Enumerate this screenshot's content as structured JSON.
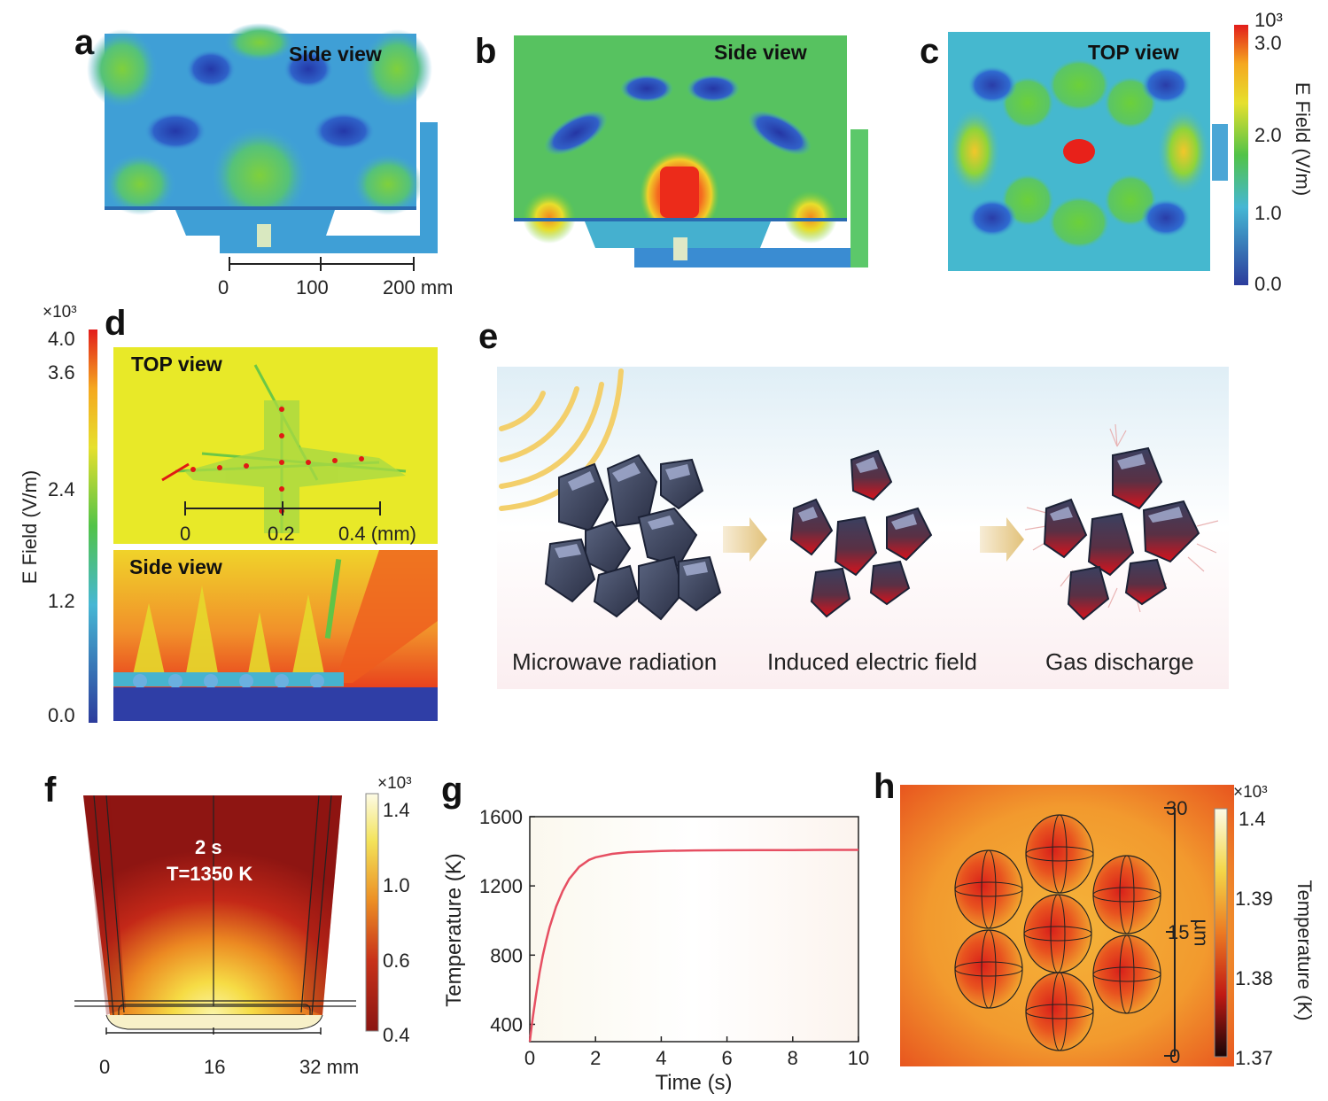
{
  "panels": {
    "a": {
      "label": "a",
      "view": "Side view"
    },
    "b": {
      "label": "b",
      "view": "Side view"
    },
    "c": {
      "label": "c",
      "view": "TOP view"
    },
    "d": {
      "label": "d",
      "view_top": "TOP view",
      "view_side": "Side view"
    },
    "e": {
      "label": "e",
      "steps": [
        "Microwave radiation",
        "Induced electric field",
        "Gas discharge"
      ]
    },
    "f": {
      "label": "f",
      "time_text": "2 s",
      "temp_text": "T=1350 K"
    },
    "g": {
      "label": "g"
    },
    "h": {
      "label": "h"
    }
  },
  "scalebar_ab": {
    "ticks": [
      "0",
      "100",
      "200 mm"
    ]
  },
  "scalebar_d": {
    "ticks": [
      "0",
      "0.2",
      "0.4 (mm)"
    ]
  },
  "scalebar_f": {
    "ticks": [
      "0",
      "16",
      "32 mm"
    ]
  },
  "scalebar_h": {
    "ticks": [
      "30",
      "15",
      "0"
    ],
    "unit": "µm"
  },
  "colorbar_c": {
    "exponent": "10³",
    "ticks": [
      "3.0",
      "2.0",
      "1.0",
      "0.0"
    ],
    "label": "E Field (V/m)"
  },
  "colorbar_d": {
    "exponent": "×10³",
    "ticks": [
      "4.0",
      "3.6",
      "2.4",
      "1.2",
      "0.0"
    ],
    "label": "E Field (V/m)"
  },
  "colorbar_f": {
    "exponent": "×10³",
    "ticks": [
      "1.4",
      "1.0",
      "0.6",
      "0.4"
    ]
  },
  "colorbar_h": {
    "exponent": "×10³",
    "ticks": [
      "1.4",
      "1.39",
      "1.38",
      "1.37"
    ],
    "label": "Temperature (K)"
  },
  "colors": {
    "rainbow_low": "#2c3e9e",
    "rainbow_mid": "#3ec44a",
    "rainbow_high": "#e02418",
    "heat_dark": "#8b1512",
    "heat_hot": "#f7e95a",
    "curve": "#e64f62"
  },
  "chart_data": {
    "type": "line",
    "xlabel": "Time (s)",
    "ylabel": "Temperature (K)",
    "xlim": [
      0,
      10
    ],
    "ylim": [
      300,
      1600
    ],
    "xticks": [
      "0",
      "2",
      "4",
      "6",
      "8",
      "10"
    ],
    "yticks": [
      "400",
      "800",
      "1200",
      "1600"
    ],
    "series": [
      {
        "x": [
          0,
          0.05,
          0.1,
          0.2,
          0.3,
          0.4,
          0.5,
          0.6,
          0.8,
          1.0,
          1.2,
          1.5,
          1.8,
          2.0,
          2.5,
          3.0,
          4.0,
          5.0,
          6.0,
          7.0,
          8.0,
          9.0,
          10.0
        ],
        "values": [
          300,
          380,
          450,
          580,
          700,
          800,
          885,
          960,
          1080,
          1170,
          1240,
          1310,
          1350,
          1365,
          1385,
          1395,
          1402,
          1405,
          1406,
          1407,
          1407,
          1408,
          1408
        ]
      }
    ]
  }
}
